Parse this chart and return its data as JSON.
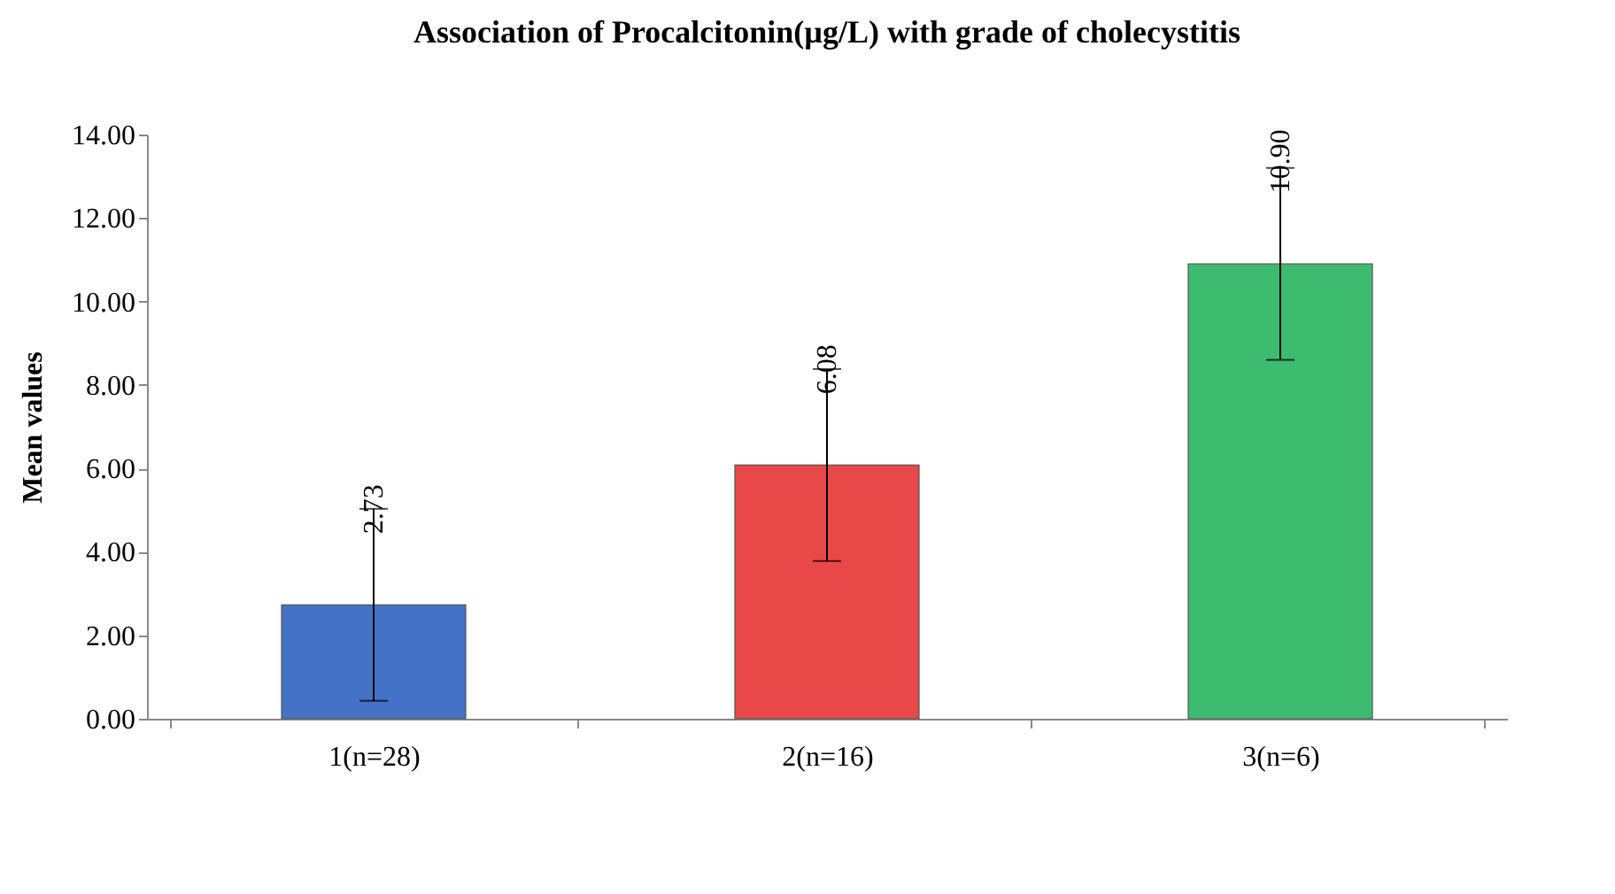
{
  "chart_data": {
    "type": "bar",
    "title": "Association of Procalcitonin(µg/L) with grade of cholecystitis",
    "ylabel": "Mean values",
    "categories": [
      "1(n=28)",
      "2(n=16)",
      "3(n=6)"
    ],
    "values": [
      2.73,
      6.08,
      10.9
    ],
    "colors": [
      "#4472c4",
      "#e84848",
      "#3dbb6f"
    ],
    "errors": [
      2.3,
      2.3,
      2.3
    ],
    "data_labels": true,
    "value_labels": [
      "2.73",
      "6.08",
      "10.90"
    ],
    "ylim": [
      0,
      14
    ],
    "yticks": [
      {
        "value": 0,
        "label": "0.00"
      },
      {
        "value": 2,
        "label": "2.00"
      },
      {
        "value": 4,
        "label": "4.00"
      },
      {
        "value": 6,
        "label": "6.00"
      },
      {
        "value": 8,
        "label": "8.00"
      },
      {
        "value": 10,
        "label": "10.00"
      },
      {
        "value": 12,
        "label": "12.00"
      },
      {
        "value": 14,
        "label": "14.00"
      }
    ],
    "grid": false,
    "legend": false
  }
}
